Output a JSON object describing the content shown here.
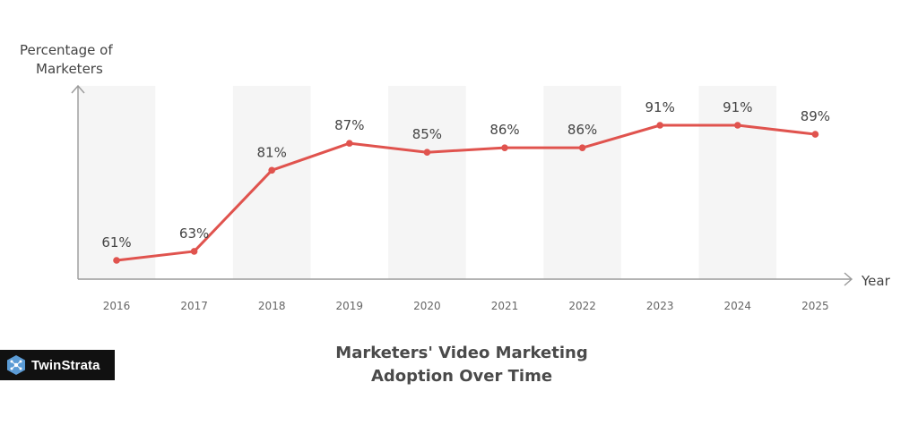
{
  "brand": {
    "name": "TwinStrata"
  },
  "chart_data": {
    "type": "line",
    "title": "Marketers' Video Marketing Adoption Over Time",
    "title_lines": [
      "Marketers' Video Marketing",
      "Adoption Over Time"
    ],
    "xlabel": "Year",
    "ylabel_lines": [
      "Percentage of",
      "Marketers"
    ],
    "categories": [
      "2016",
      "2017",
      "2018",
      "2019",
      "2020",
      "2021",
      "2022",
      "2023",
      "2024",
      "2025"
    ],
    "values": [
      61,
      63,
      81,
      87,
      85,
      86,
      86,
      91,
      91,
      89
    ],
    "data_labels": [
      "61%",
      "63%",
      "81%",
      "87%",
      "85%",
      "86%",
      "86%",
      "91%",
      "91%",
      "89%"
    ],
    "ylim": [
      55,
      95
    ],
    "grid": false,
    "alternating_bands": true,
    "colors": {
      "line": "#e0534e",
      "band": "#f5f5f5",
      "axis": "#9a9a9a"
    }
  }
}
